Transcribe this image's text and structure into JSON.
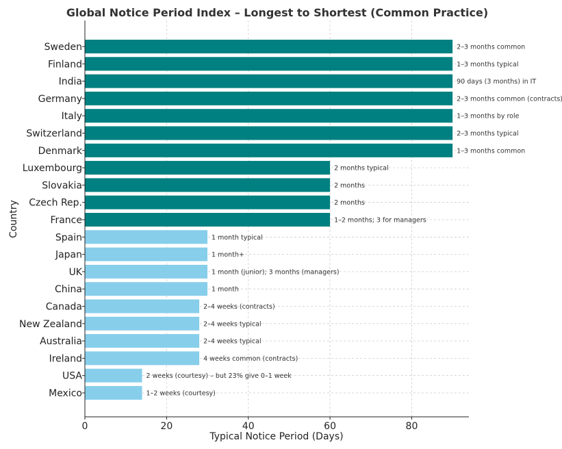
{
  "chart_data": {
    "type": "bar",
    "orientation": "horizontal",
    "title": "Global Notice Period Index – Longest to Shortest (Common Practice)",
    "xlabel": "Typical Notice Period (Days)",
    "ylabel": "Country",
    "xlim": [
      0,
      94
    ],
    "xticks": [
      0,
      20,
      40,
      60,
      80
    ],
    "grid": true,
    "categories": [
      "Sweden",
      "Finland",
      "India",
      "Germany",
      "Italy",
      "Switzerland",
      "Denmark",
      "Luxembourg",
      "Slovakia",
      "Czech Rep.",
      "France",
      "Spain",
      "Japan",
      "UK",
      "China",
      "Canada",
      "New Zealand",
      "Australia",
      "Ireland",
      "USA",
      "Mexico"
    ],
    "values": [
      90,
      90,
      90,
      90,
      90,
      90,
      90,
      60,
      60,
      60,
      60,
      30,
      30,
      30,
      30,
      28,
      28,
      28,
      28,
      14,
      14
    ],
    "labels": [
      "2–3 months common",
      "1–3 months typical",
      "90 days (3 months) in IT",
      "2–3 months common (contracts)",
      "1–3 months by role",
      "2–3 months typical",
      "1–3 months common",
      "2 months typical",
      "2 months",
      "2 months",
      "1–2 months; 3 for managers",
      "1 month typical",
      "1 month+",
      "1 month (junior); 3 months (managers)",
      "1 month",
      "2–4 weeks (contracts)",
      "2–4 weeks typical",
      "2–4 weeks typical",
      "4 weeks common (contracts)",
      "2 weeks (courtesy) – but 23% give 0–1 week",
      "1–2 weeks (courtesy)"
    ],
    "colors": {
      "long": "#008080",
      "short": "#87CEEB"
    },
    "color_threshold": 60
  }
}
